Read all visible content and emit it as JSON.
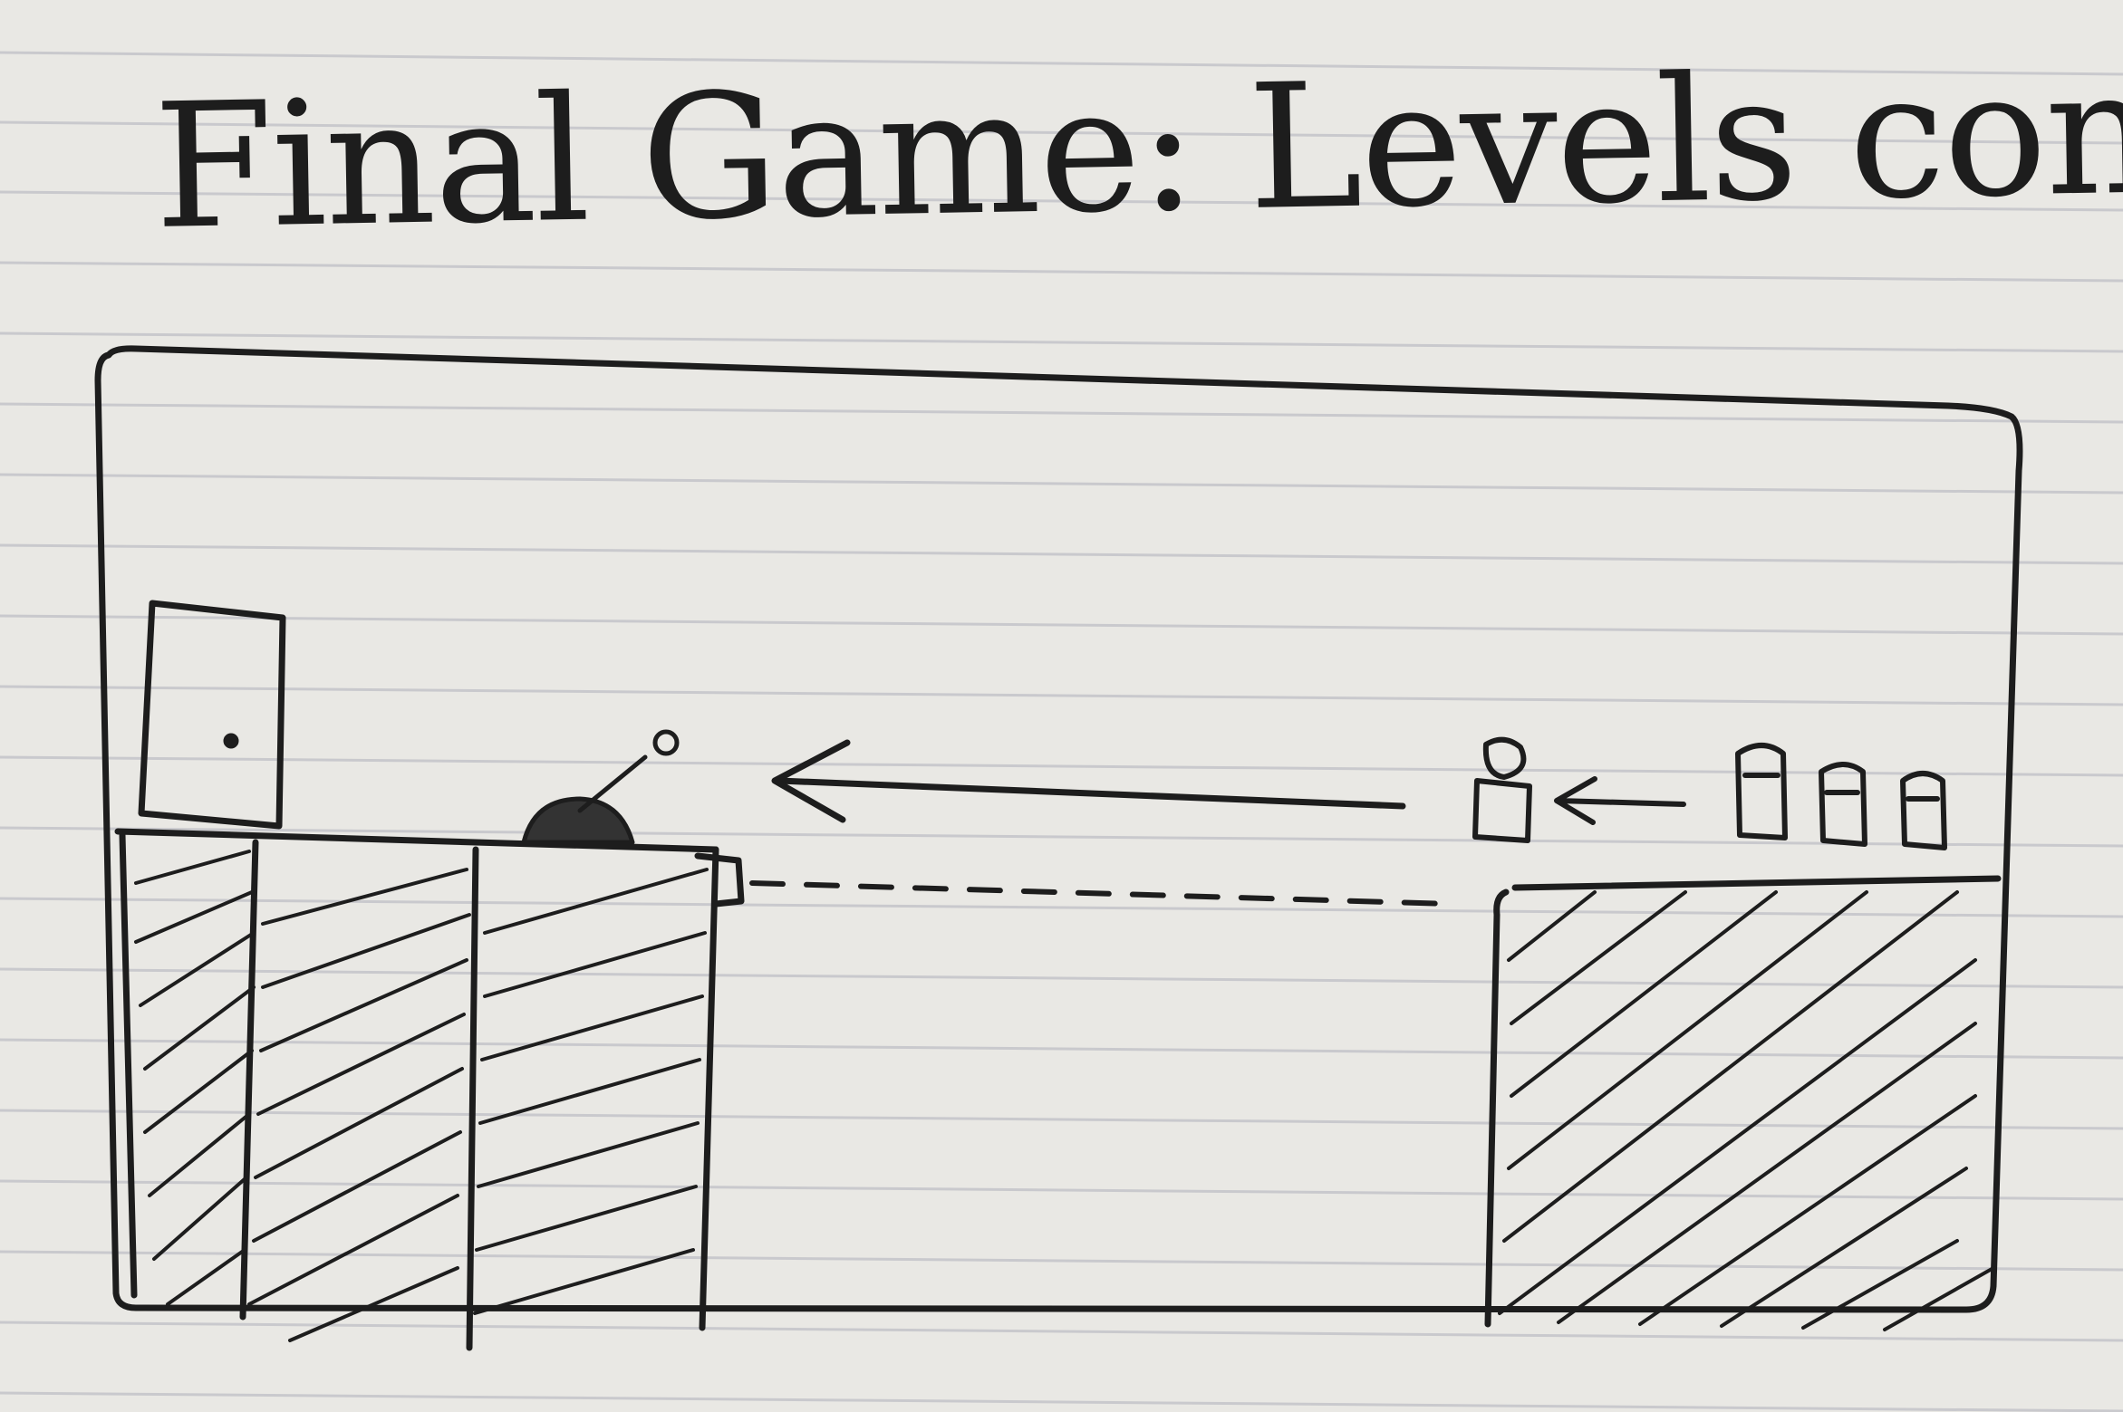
{
  "sketch": {
    "title": "Final Game: Levels cont",
    "colors": {
      "paper": "#e9e8e4",
      "ruling": "#c9c9cd",
      "ink": "#1d1d1d"
    }
  }
}
